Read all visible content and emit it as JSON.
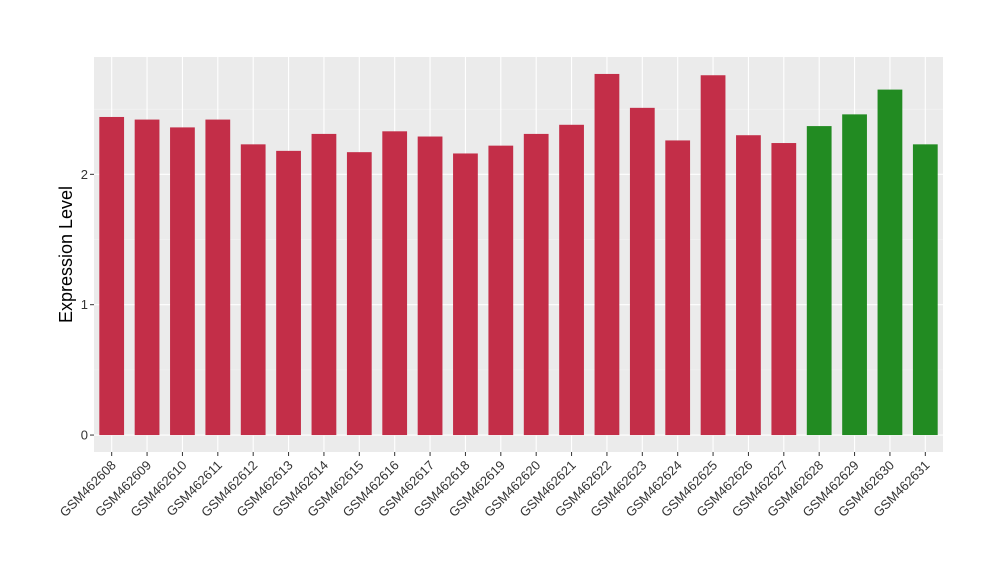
{
  "chart_data": {
    "type": "bar",
    "title": "",
    "xlabel": "",
    "ylabel": "Expression Level",
    "ylim": [
      -0.13,
      2.9
    ],
    "yticks": [
      0,
      1,
      2
    ],
    "grid": true,
    "legend": "none",
    "colors": {
      "panel_background": "#ebebeb",
      "grid_major": "#ffffff",
      "grid_minor": "#f5f5f5",
      "group_a": "#c32e48",
      "group_b": "#228b22"
    },
    "categories": [
      "GSM462608",
      "GSM462609",
      "GSM462610",
      "GSM462611",
      "GSM462612",
      "GSM462613",
      "GSM462614",
      "GSM462615",
      "GSM462616",
      "GSM462617",
      "GSM462618",
      "GSM462619",
      "GSM462620",
      "GSM462621",
      "GSM462622",
      "GSM462623",
      "GSM462624",
      "GSM462625",
      "GSM462626",
      "GSM462627",
      "GSM462628",
      "GSM462629",
      "GSM462630",
      "GSM462631"
    ],
    "values": [
      2.44,
      2.42,
      2.36,
      2.42,
      2.23,
      2.18,
      2.31,
      2.17,
      2.33,
      2.29,
      2.16,
      2.22,
      2.31,
      2.38,
      2.77,
      2.51,
      2.26,
      2.76,
      2.3,
      2.24,
      2.37,
      2.46,
      2.65,
      2.23
    ],
    "bar_colors": [
      "#c32e48",
      "#c32e48",
      "#c32e48",
      "#c32e48",
      "#c32e48",
      "#c32e48",
      "#c32e48",
      "#c32e48",
      "#c32e48",
      "#c32e48",
      "#c32e48",
      "#c32e48",
      "#c32e48",
      "#c32e48",
      "#c32e48",
      "#c32e48",
      "#c32e48",
      "#c32e48",
      "#c32e48",
      "#c32e48",
      "#228b22",
      "#228b22",
      "#228b22",
      "#228b22"
    ]
  }
}
